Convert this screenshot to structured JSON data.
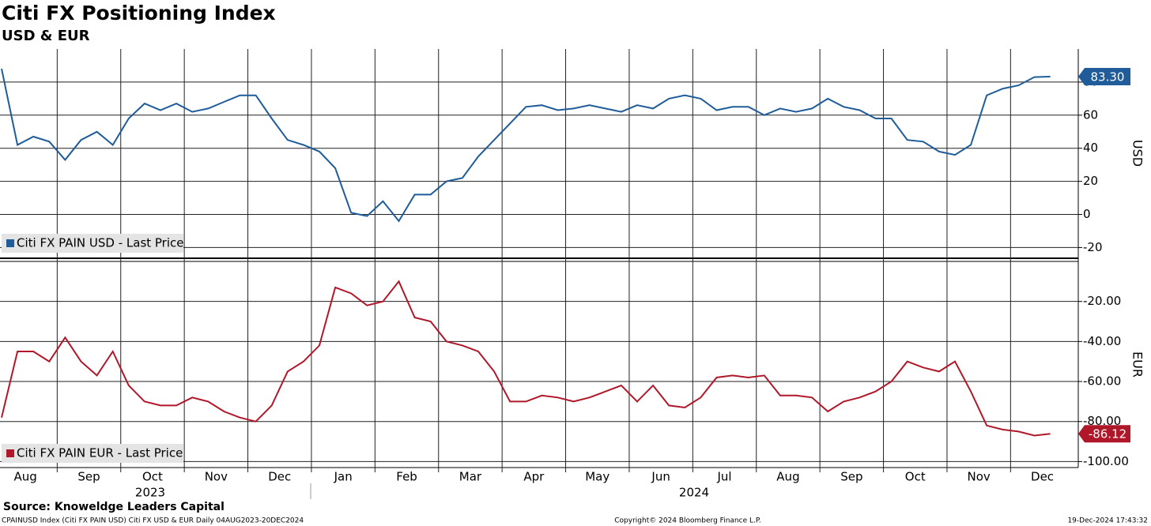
{
  "chart_data": {
    "type": "line",
    "title": "Citi FX Positioning Index",
    "subtitle": "USD & EUR",
    "categories": [
      null,
      "Aug",
      null,
      null,
      null,
      "Sep",
      null,
      null,
      null,
      "Oct",
      null,
      null,
      null,
      "Nov",
      null,
      null,
      null,
      "Dec",
      null,
      null,
      null,
      "Jan",
      null,
      null,
      null,
      "Feb",
      null,
      null,
      null,
      "Mar",
      null,
      null,
      null,
      "Apr",
      null,
      null,
      null,
      "May",
      null,
      null,
      null,
      "Jun",
      null,
      null,
      null,
      "Jul",
      null,
      null,
      null,
      "Aug",
      null,
      null,
      null,
      "Sep",
      null,
      null,
      null,
      "Oct",
      null,
      null,
      null,
      "Nov",
      null,
      null,
      null,
      "Dec",
      null
    ],
    "year_labels": [
      "2023",
      "2024"
    ],
    "grid": true,
    "panels": [
      {
        "y_label": "USD",
        "ylim": [
          -26,
          100
        ],
        "yticks": [
          -20,
          0,
          20,
          40,
          60,
          80
        ],
        "series": [
          {
            "name": "Citi FX PAIN USD - Last Price",
            "color": "#1f5c99",
            "last_label": "83.30",
            "values": [
              88,
              42,
              47,
              44,
              33,
              45,
              50,
              42,
              58,
              67,
              63,
              67,
              62,
              64,
              68,
              72,
              72,
              58,
              45,
              42,
              38,
              28,
              1,
              -1,
              8,
              -4,
              12,
              12,
              20,
              22,
              35,
              45,
              55,
              65,
              66,
              63,
              64,
              66,
              64,
              62,
              66,
              64,
              70,
              72,
              70,
              63,
              65,
              65,
              60,
              64,
              62,
              64,
              70,
              65,
              63,
              58,
              58,
              45,
              44,
              38,
              36,
              42,
              72,
              76,
              78,
              83,
              83.3
            ]
          }
        ]
      },
      {
        "y_label": "EUR",
        "ylim": [
          -103,
          0
        ],
        "yticks": [
          {
            "value": -20,
            "label": "-20.00"
          },
          {
            "value": -40,
            "label": "-40.00"
          },
          {
            "value": -60,
            "label": "-60.00"
          },
          {
            "value": -80,
            "label": "-80.00"
          },
          {
            "value": -100,
            "label": "-100.00"
          }
        ],
        "series": [
          {
            "name": "Citi FX PAIN EUR - Last Price",
            "color": "#b0182a",
            "last_label": "-86.12",
            "values": [
              -78,
              -45,
              -45,
              -50,
              -38,
              -50,
              -57,
              -45,
              -62,
              -70,
              -72,
              -72,
              -68,
              -70,
              -75,
              -78,
              -80,
              -72,
              -55,
              -50,
              -42,
              -13,
              -16,
              -22,
              -20,
              -10,
              -28,
              -30,
              -40,
              -42,
              -45,
              -55,
              -70,
              -70,
              -67,
              -68,
              -70,
              -68,
              -65,
              -62,
              -70,
              -62,
              -72,
              -73,
              -68,
              -58,
              -57,
              -58,
              -57,
              -67,
              -67,
              -68,
              -75,
              -70,
              -68,
              -65,
              -60,
              -50,
              -53,
              -55,
              -50,
              -65,
              -82,
              -84,
              -85,
              -87,
              -86.12
            ]
          }
        ]
      }
    ]
  },
  "source": "Source: Knoweldge Leaders Capital",
  "footer": {
    "left": "CPAINUSD Index (Citi FX PAIN USD) Citi FX USD & EUR  Daily 04AUG2023-20DEC2024",
    "center": "Copyright© 2024 Bloomberg Finance L.P.",
    "right": "19-Dec-2024 17:43:32"
  }
}
